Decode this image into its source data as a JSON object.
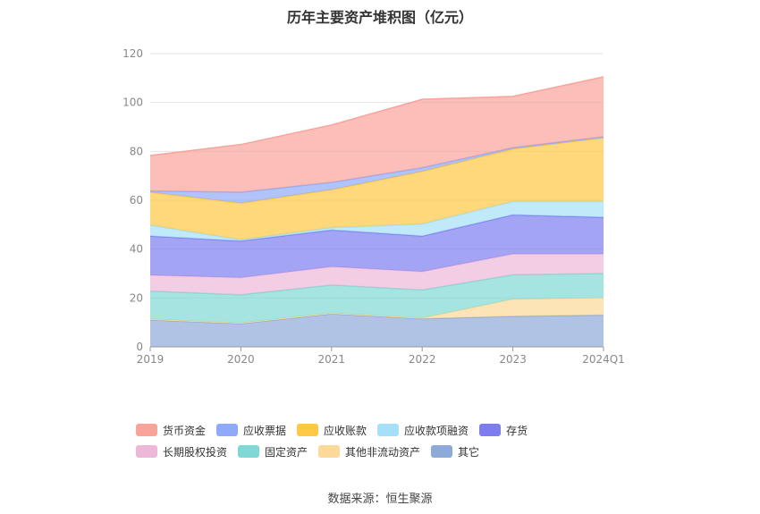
{
  "chart_data": {
    "type": "area",
    "title": "历年主要资产堆积图（亿元）",
    "categories": [
      "2019",
      "2020",
      "2021",
      "2022",
      "2023",
      "2024Q1"
    ],
    "ylim": [
      0,
      120
    ],
    "yticks": [
      0,
      20,
      40,
      60,
      80,
      100,
      120
    ],
    "grid": true,
    "legend_position": "bottom",
    "stacked": true,
    "series": [
      {
        "name": "其它",
        "color": "#8eaad8",
        "values": [
          11,
          9.5,
          13.5,
          11.5,
          12.5,
          13
        ]
      },
      {
        "name": "其他非流动资产",
        "color": "#fcd998",
        "values": [
          0.3,
          0.3,
          0.3,
          0.3,
          7,
          7
        ]
      },
      {
        "name": "固定资产",
        "color": "#7fd8d4",
        "values": [
          11.5,
          11.5,
          11.5,
          11.5,
          10,
          10
        ]
      },
      {
        "name": "长期股权投资",
        "color": "#edb8d8",
        "values": [
          6.5,
          7,
          7.5,
          7.5,
          8.5,
          8
        ]
      },
      {
        "name": "存货",
        "color": "#7d7df0",
        "values": [
          16,
          15,
          15,
          14.5,
          16,
          15
        ]
      },
      {
        "name": "应收款项融资",
        "color": "#a5e0f8",
        "values": [
          4.5,
          0.5,
          1,
          5,
          5.5,
          6.5
        ]
      },
      {
        "name": "应收账款",
        "color": "#ffc845",
        "values": [
          13.5,
          15,
          15.5,
          21.5,
          21.5,
          26
        ]
      },
      {
        "name": "应收票据",
        "color": "#8eaaf8",
        "values": [
          0.5,
          4.5,
          3,
          1.5,
          0.5,
          0.5
        ]
      },
      {
        "name": "货币资金",
        "color": "#f9a39b",
        "values": [
          14.5,
          19.5,
          23.5,
          28,
          21,
          24.5
        ]
      }
    ],
    "legend_order": [
      "货币资金",
      "应收票据",
      "应收账款",
      "应收款项融资",
      "存货",
      "长期股权投资",
      "固定资产",
      "其他非流动资产",
      "其它"
    ]
  },
  "source": "数据来源：恒生聚源"
}
